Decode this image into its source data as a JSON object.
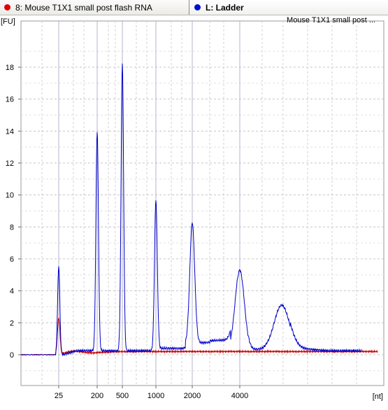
{
  "tabs": [
    {
      "label": "8: Mouse T1X1 small post flash RNA",
      "color": "#e00000"
    },
    {
      "label": "L: Ladder",
      "color": "#0010d0"
    }
  ],
  "chart_data": {
    "type": "line",
    "title": "Mouse T1X1 small post ...",
    "ylabel": "[FU]",
    "xlabel": "[nt]",
    "ylim": [
      -2,
      20
    ],
    "yticks": [
      0,
      2,
      4,
      6,
      8,
      10,
      12,
      14,
      16,
      18
    ],
    "xticks": [
      "25",
      "200",
      "500",
      "1000",
      "2000",
      "4000"
    ],
    "grid": true,
    "series": [
      {
        "name": "L: Ladder",
        "color": "#0000c8",
        "peaks": [
          {
            "label": "25",
            "height": 5.8
          },
          {
            "label": "200",
            "height": 14.0
          },
          {
            "label": "500",
            "height": 18.2
          },
          {
            "label": "1000",
            "height": 9.7
          },
          {
            "label": "2000",
            "height": 7.8
          },
          {
            "label": "4000",
            "height": 5.3
          },
          {
            "label": "6000",
            "height": 3.1
          }
        ]
      },
      {
        "name": "8: Mouse T1X1 small post flash RNA",
        "color": "#c80000",
        "peaks": [
          {
            "label": "25",
            "height": 2.3
          }
        ],
        "baseline": 0.2
      }
    ]
  }
}
